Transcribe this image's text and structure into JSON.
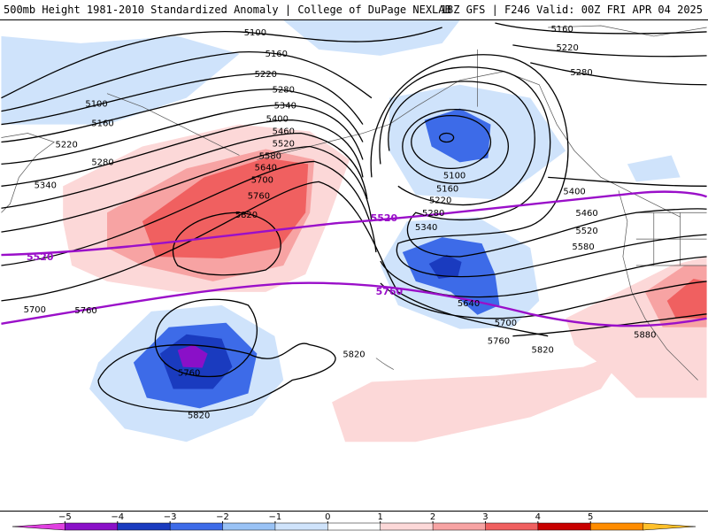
{
  "header": {
    "left_title": "500mb Height 1981-2010 Standardized Anomaly | College of DuPage NEXLAB",
    "right_title": "18Z GFS | F246 Valid: 00Z FRI APR 04 2025"
  },
  "contour_labels": {
    "black": [
      "5100",
      "5160",
      "5220",
      "5280",
      "5340",
      "5400",
      "5460",
      "5520",
      "5580",
      "5640",
      "5700",
      "5760",
      "5820",
      "5880"
    ],
    "purple": [
      "5520",
      "5760"
    ]
  },
  "colorbar": {
    "tick_labels": [
      "−5",
      "−4",
      "−3",
      "−2",
      "−1",
      "0",
      "1",
      "2",
      "3",
      "4",
      "5"
    ],
    "colors": [
      "#e040e0",
      "#8a10c8",
      "#1a3bbf",
      "#3d6be8",
      "#99c2f5",
      "#cfe3fb",
      "#ffffff",
      "#fcd8d8",
      "#f7a3a3",
      "#f06060",
      "#c80000",
      "#ff8c00",
      "#ffc02a"
    ]
  },
  "colors": {
    "anomaly_strong_negative": "#8a10c8",
    "anomaly_negative_dark": "#1a3bbf",
    "anomaly_negative_mid": "#3d6be8",
    "anomaly_negative_light": "#cfe3fb",
    "anomaly_positive_light": "#fcd8d8",
    "anomaly_positive_mid": "#f7a3a3",
    "anomaly_positive_strong": "#f06060",
    "special_contour": "#9a0fc9",
    "height_contour": "#000000"
  }
}
